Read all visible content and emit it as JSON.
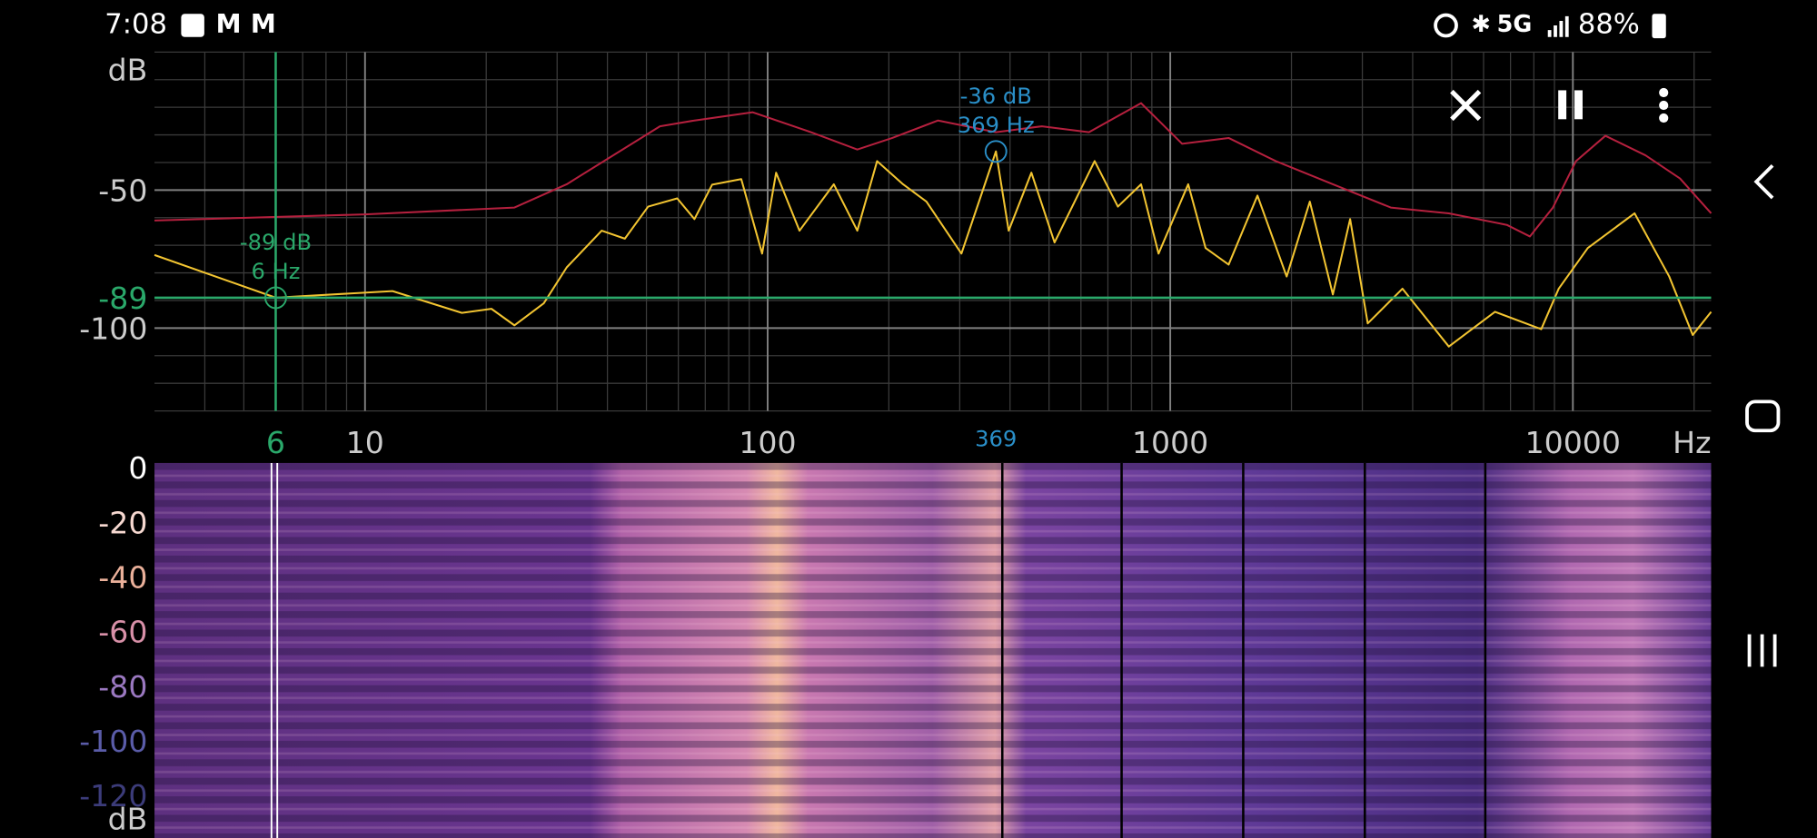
{
  "status_bar": {
    "time": "7:08",
    "network": "5G",
    "battery": "88%"
  },
  "chart_data": {
    "type": "line",
    "log_x": true,
    "xlim": [
      3,
      22050
    ],
    "ylim": [
      -130,
      0
    ],
    "xticks": [
      10,
      100,
      1000,
      10000
    ],
    "yticks": [
      -50,
      -100
    ],
    "x_unit": "Hz",
    "y_unit": "dB",
    "grid": true,
    "minor_grid": true,
    "series": [
      {
        "color": "#b5203e",
        "x": [
          3,
          10,
          23.5,
          31.7,
          54,
          65.8,
          91.8,
          128,
          167,
          204,
          265,
          369,
          480,
          628,
          846,
          1070,
          1396,
          1828,
          2534,
          3530,
          4918,
          6855,
          7818,
          8920,
          10180,
          12040,
          15150,
          18450,
          22050
        ],
        "values": [
          -61,
          -58.8,
          -56.3,
          -47.9,
          -26.9,
          -24.8,
          -21.8,
          -29,
          -35.3,
          -31.1,
          -24.8,
          -29,
          -26.9,
          -29,
          -18.5,
          -33.2,
          -31.1,
          -39.5,
          -47.9,
          -56.3,
          -58.4,
          -62.6,
          -66.8,
          -56.3,
          -39.5,
          -30.3,
          -37.4,
          -45.8,
          -58.4
        ]
      },
      {
        "color": "#f2c431",
        "x": [
          3,
          6,
          11.7,
          17.4,
          20.6,
          23.5,
          27.8,
          31.7,
          38.7,
          44.2,
          50.5,
          59.6,
          65.8,
          72.8,
          86,
          96.9,
          105,
          120,
          146,
          167,
          187,
          217,
          248,
          303,
          369,
          397,
          452,
          516,
          649,
          741,
          846,
          935,
          1108,
          1224,
          1396,
          1647,
          1946,
          2222,
          2534,
          2798,
          3094,
          3774,
          4918,
          6405,
          8345,
          9220,
          10890,
          12450,
          14230,
          17350,
          19840,
          22050
        ],
        "values": [
          -73.5,
          -89,
          -86.6,
          -94.5,
          -93,
          -99,
          -91,
          -78,
          -64.7,
          -67.6,
          -56,
          -53,
          -60.5,
          -48,
          -46,
          -73,
          -43.7,
          -64.7,
          -47.9,
          -64.7,
          -39.5,
          -47.9,
          -54.2,
          -73,
          -36,
          -64.7,
          -43.7,
          -69,
          -39.5,
          -56,
          -47.9,
          -73,
          -47.9,
          -71,
          -77,
          -52,
          -81.3,
          -54.2,
          -87.8,
          -60.5,
          -98.3,
          -85.7,
          -106.7,
          -94.1,
          -100.4,
          -85.7,
          -71,
          -64.7,
          -58.4,
          -81.3,
          -102.5,
          -94.1
        ]
      }
    ],
    "cursors": [
      {
        "x": 6,
        "y": -89,
        "db_label": "-89 dB",
        "hz_label": "6 Hz",
        "color": "#2aa86a",
        "crosshair": true
      },
      {
        "x": 369,
        "y": -36,
        "db_label": "-36 dB",
        "hz_label": "369 Hz",
        "color": "#2a8fc8",
        "crosshair": false
      }
    ]
  },
  "spectrogram": {
    "scale": [
      0,
      -20,
      -40,
      -60,
      -80,
      -100,
      -120
    ],
    "unit": "dB"
  }
}
